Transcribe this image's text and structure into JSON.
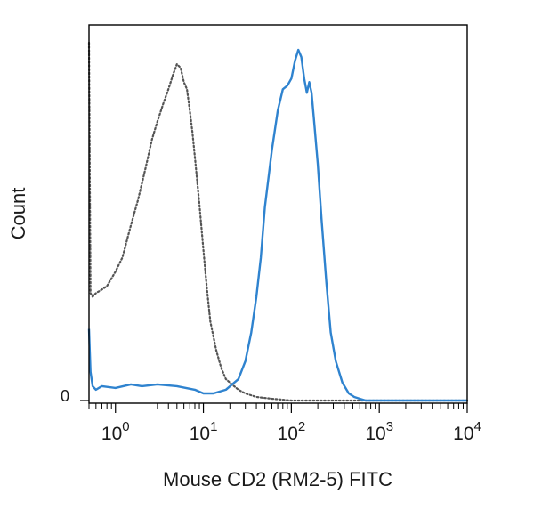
{
  "chart_data": {
    "type": "line",
    "title": "",
    "xlabel": "Mouse CD2 (RM2-5) FITC",
    "ylabel": "Count",
    "x_scale": "log",
    "xlim": [
      0.5,
      10000
    ],
    "ylim": [
      0,
      100
    ],
    "y_ticks": [
      {
        "value": 0,
        "label": "0"
      }
    ],
    "x_ticks": [
      {
        "base": "10",
        "exp": "0",
        "value": 1
      },
      {
        "base": "10",
        "exp": "1",
        "value": 10
      },
      {
        "base": "10",
        "exp": "2",
        "value": 100
      },
      {
        "base": "10",
        "exp": "3",
        "value": 1000
      },
      {
        "base": "10",
        "exp": "4",
        "value": 10000
      }
    ],
    "grid": false,
    "legend": "none",
    "series": [
      {
        "style": "dotted",
        "color": "#555555",
        "x": [
          0.5,
          0.52,
          0.55,
          0.6,
          0.7,
          0.8,
          1.0,
          1.2,
          1.5,
          1.8,
          2.2,
          2.6,
          3.0,
          3.5,
          4.0,
          4.5,
          5.0,
          5.5,
          6.0,
          6.5,
          7.0,
          7.5,
          8.0,
          9.0,
          10,
          11,
          12,
          14,
          16,
          18,
          20,
          25,
          30,
          40,
          60,
          100,
          1000,
          10000
        ],
        "y": [
          100,
          30,
          29,
          30,
          31,
          32,
          36,
          40,
          49,
          56,
          65,
          73,
          78,
          83,
          87,
          91,
          94,
          93,
          89,
          87,
          81,
          75,
          68,
          55,
          42,
          31,
          22,
          14,
          9,
          6,
          5,
          3,
          2,
          1,
          0.5,
          0,
          0,
          0
        ]
      },
      {
        "style": "solid",
        "color": "#2f83cf",
        "x": [
          0.5,
          0.52,
          0.55,
          0.6,
          0.7,
          1.0,
          1.5,
          2.0,
          3.0,
          5.0,
          8.0,
          10,
          13,
          18,
          25,
          30,
          35,
          40,
          45,
          50,
          60,
          70,
          80,
          90,
          100,
          110,
          120,
          130,
          140,
          150,
          160,
          170,
          180,
          200,
          220,
          250,
          280,
          320,
          380,
          450,
          520,
          600,
          700,
          1000,
          10000
        ],
        "y": [
          20,
          8,
          4,
          3,
          4,
          3.5,
          4.5,
          4,
          4.5,
          4,
          3,
          2,
          2,
          3,
          6,
          11,
          19,
          29,
          40,
          54,
          70,
          81,
          87,
          88,
          90,
          95,
          98,
          96,
          90,
          86,
          89,
          86,
          79,
          66,
          51,
          33,
          19,
          11,
          5,
          2,
          1,
          0.5,
          0,
          0,
          0
        ]
      }
    ]
  }
}
